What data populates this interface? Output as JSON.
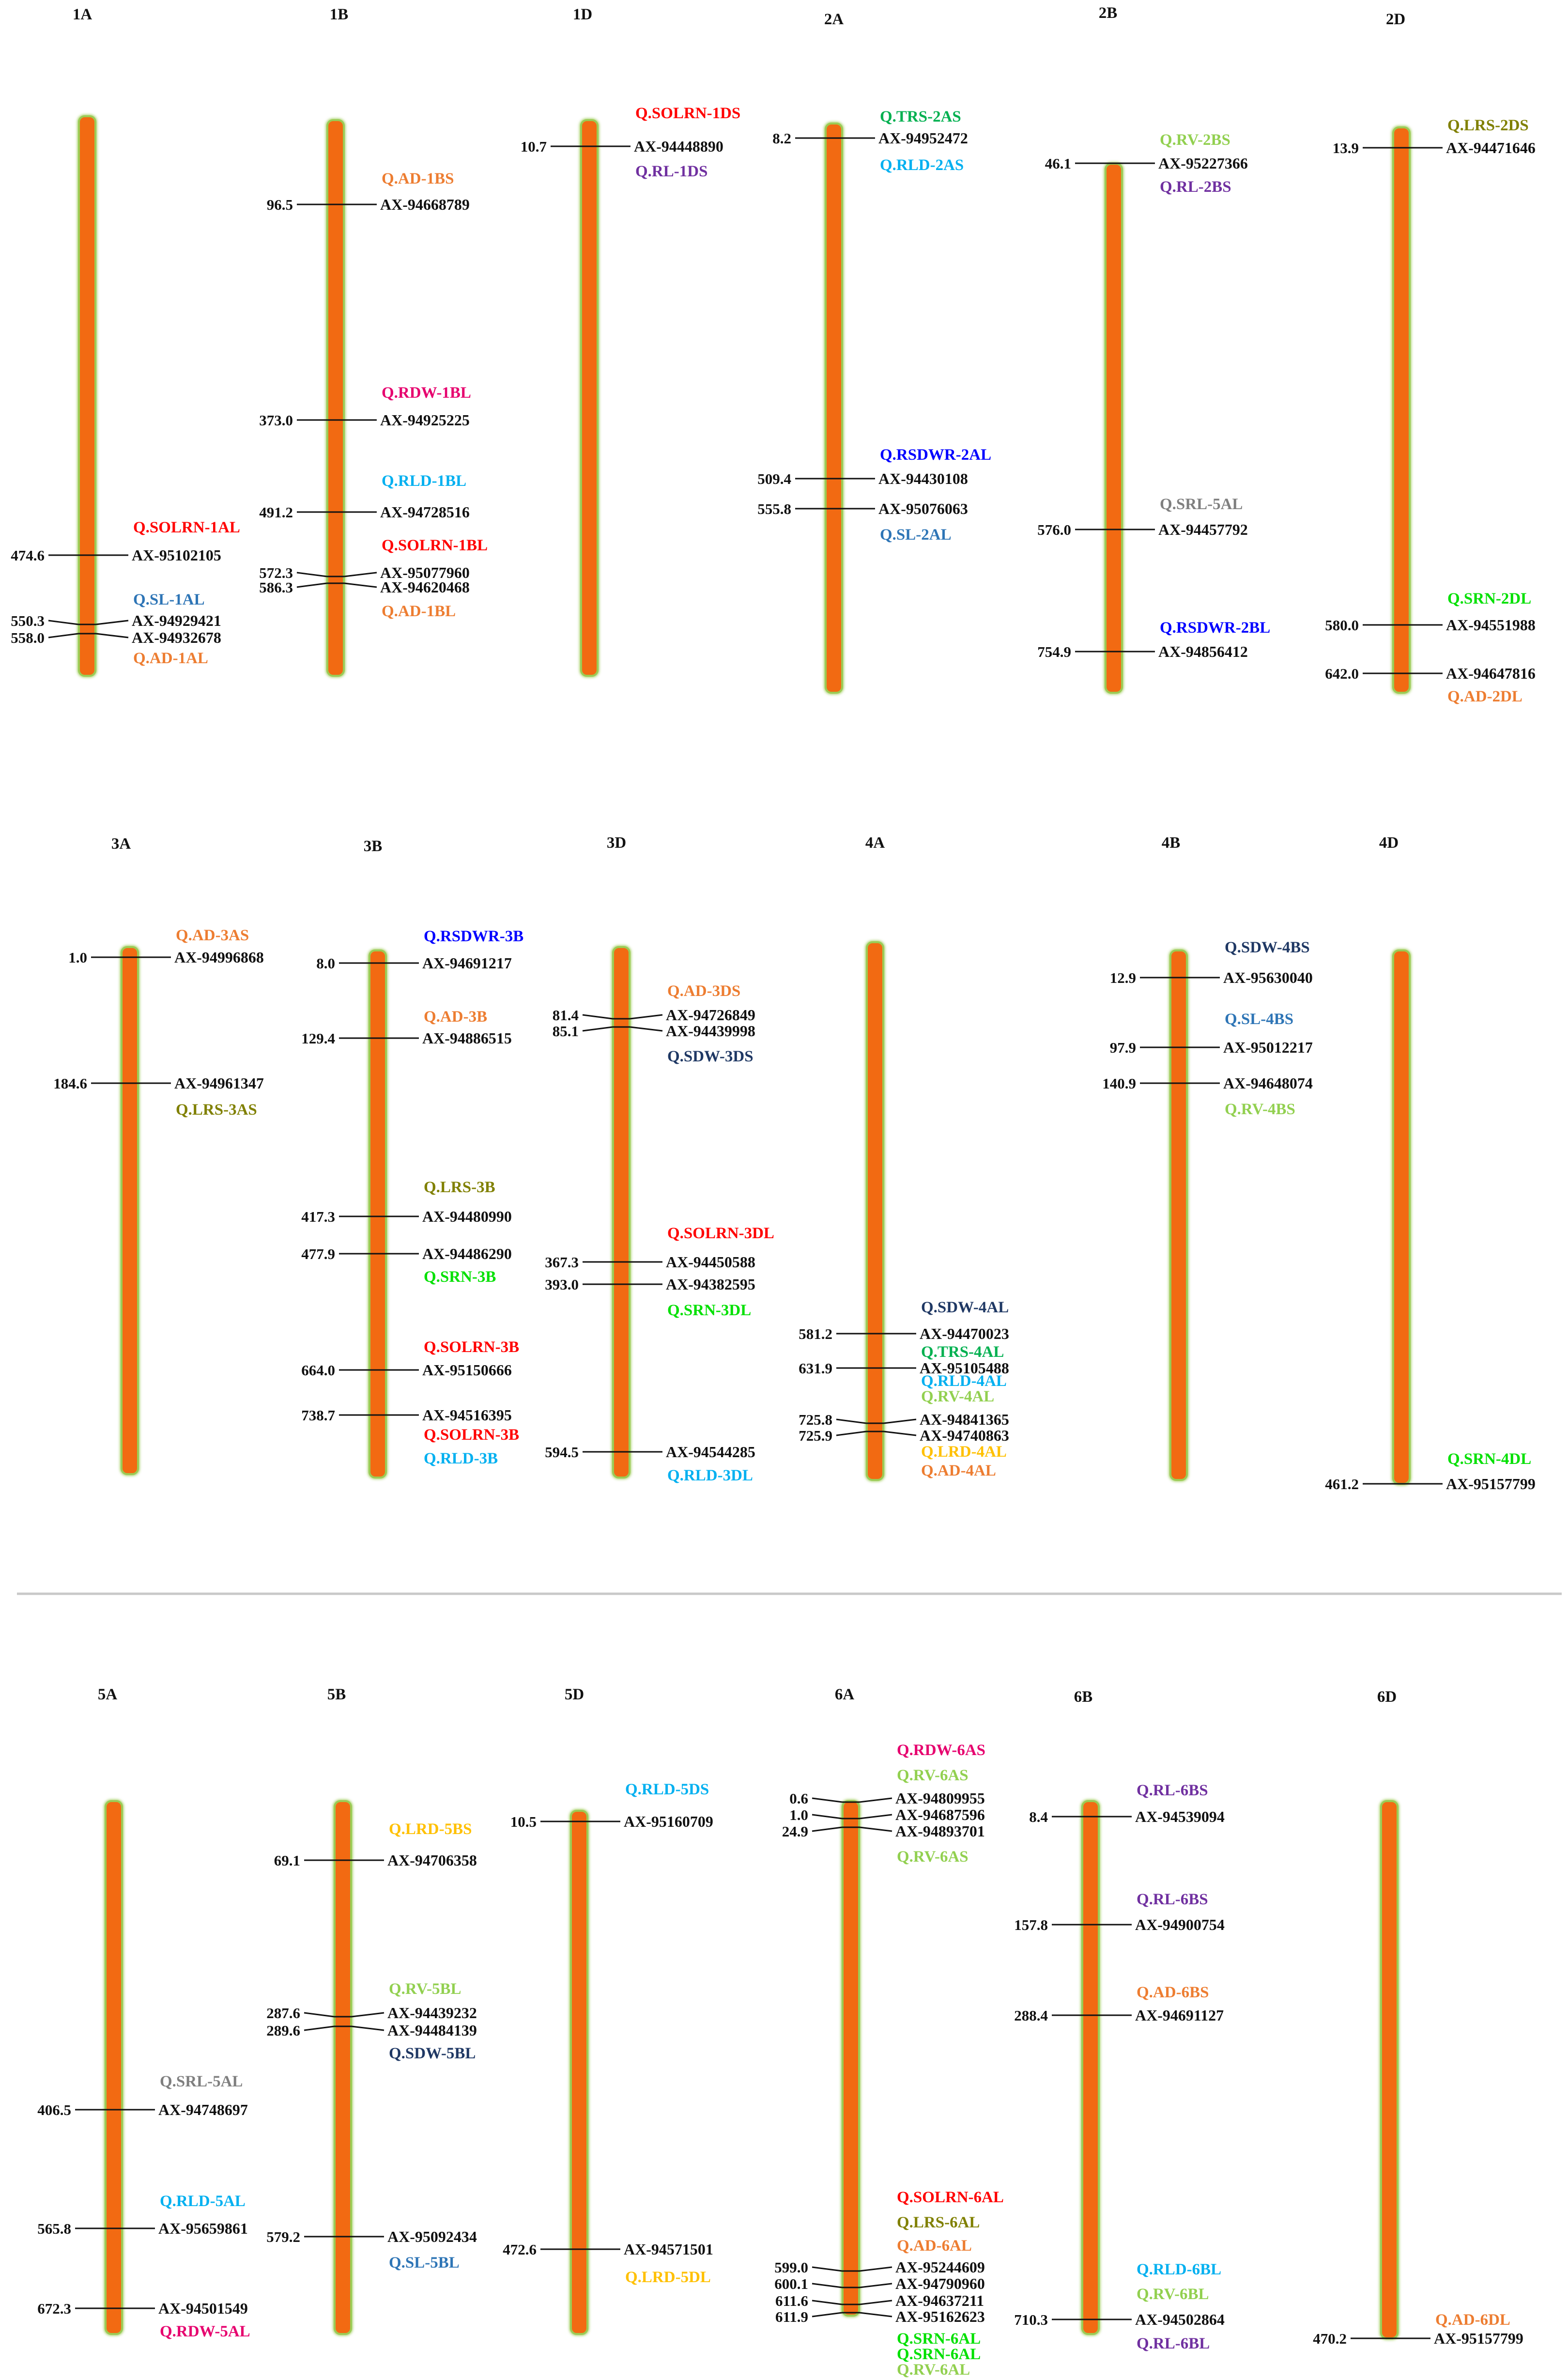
{
  "colors": {
    "chromosome_fill": "#F26A12",
    "chromosome_edge": "#9BCB55",
    "divider": "#C8C8C8",
    "line": "#111111"
  },
  "chromosomes": [
    {
      "id": "c1A",
      "name": "1A",
      "markers": [
        {
          "pos": "474.6",
          "name": "AX-95102105"
        },
        {
          "pos": "550.3",
          "name": "AX-94929421"
        },
        {
          "pos": "558.0",
          "name": "AX-94932678"
        }
      ],
      "qtls": [
        {
          "name": "Q.SOLRN-1AL",
          "color": "#FF0000"
        },
        {
          "name": "Q.SL-1AL",
          "color": "#2E75B6"
        },
        {
          "name": "Q.AD-1AL",
          "color": "#ED7D31"
        }
      ]
    },
    {
      "id": "c1B",
      "name": "1B",
      "markers": [
        {
          "pos": "96.5",
          "name": "AX-94668789"
        },
        {
          "pos": "373.0",
          "name": "AX-94925225"
        },
        {
          "pos": "491.2",
          "name": "AX-94728516"
        },
        {
          "pos": "572.3",
          "name": "AX-95077960"
        },
        {
          "pos": "586.3",
          "name": "AX-94620468"
        }
      ],
      "qtls": [
        {
          "name": "Q.AD-1BS",
          "color": "#ED7D31"
        },
        {
          "name": "Q.RDW-1BL",
          "color": "#E6006E"
        },
        {
          "name": "Q.RLD-1BL",
          "color": "#00B0F0"
        },
        {
          "name": "Q.SOLRN-1BL",
          "color": "#FF0000"
        },
        {
          "name": "Q.AD-1BL",
          "color": "#ED7D31"
        }
      ]
    },
    {
      "id": "c1D",
      "name": "1D",
      "markers": [
        {
          "pos": "10.7",
          "name": "AX-94448890"
        }
      ],
      "qtls": [
        {
          "name": "Q.SOLRN-1DS",
          "color": "#FF0000"
        },
        {
          "name": "Q.RL-1DS",
          "color": "#7030A0"
        }
      ]
    },
    {
      "id": "c2A",
      "name": "2A",
      "markers": [
        {
          "pos": "8.2",
          "name": "AX-94952472"
        },
        {
          "pos": "509.4",
          "name": "AX-94430108"
        },
        {
          "pos": "555.8",
          "name": "AX-95076063"
        }
      ],
      "qtls": [
        {
          "name": "Q.TRS-2AS",
          "color": "#00B050"
        },
        {
          "name": "Q.RLD-2AS",
          "color": "#00B0F0"
        },
        {
          "name": "Q.RSDWR-2AL",
          "color": "#0000FF"
        },
        {
          "name": "Q.SL-2AL",
          "color": "#2E75B6"
        }
      ]
    },
    {
      "id": "c2B",
      "name": "2B",
      "markers": [
        {
          "pos": "46.1",
          "name": "AX-95227366"
        },
        {
          "pos": "576.0",
          "name": "AX-94457792"
        },
        {
          "pos": "754.9",
          "name": "AX-94856412"
        }
      ],
      "qtls": [
        {
          "name": "Q.RV-2BS",
          "color": "#92D050"
        },
        {
          "name": "Q.RL-2BS",
          "color": "#7030A0"
        },
        {
          "name": "Q.SRL-5AL",
          "color": "#7F7F7F"
        },
        {
          "name": "Q.RSDWR-2BL",
          "color": "#0000FF"
        }
      ]
    },
    {
      "id": "c2D",
      "name": "2D",
      "markers": [
        {
          "pos": "13.9",
          "name": "AX-94471646"
        },
        {
          "pos": "580.0",
          "name": "AX-94551988"
        },
        {
          "pos": "642.0",
          "name": "AX-94647816"
        }
      ],
      "qtls": [
        {
          "name": "Q.LRS-2DS",
          "color": "#808000"
        },
        {
          "name": "Q.SRN-2DL",
          "color": "#00E000"
        },
        {
          "name": "Q.AD-2DL",
          "color": "#ED7D31"
        }
      ]
    },
    {
      "id": "c3A",
      "name": "3A",
      "markers": [
        {
          "pos": "1.0",
          "name": "AX-94996868"
        },
        {
          "pos": "184.6",
          "name": "AX-94961347"
        }
      ],
      "qtls": [
        {
          "name": "Q.AD-3AS",
          "color": "#ED7D31"
        },
        {
          "name": "Q.LRS-3AS",
          "color": "#808000"
        }
      ]
    },
    {
      "id": "c3B",
      "name": "3B",
      "markers": [
        {
          "pos": "8.0",
          "name": "AX-94691217"
        },
        {
          "pos": "129.4",
          "name": "AX-94886515"
        },
        {
          "pos": "417.3",
          "name": "AX-94480990"
        },
        {
          "pos": "477.9",
          "name": "AX-94486290"
        },
        {
          "pos": "664.0",
          "name": "AX-95150666"
        },
        {
          "pos": "738.7",
          "name": "AX-94516395"
        }
      ],
      "qtls": [
        {
          "name": "Q.RSDWR-3B",
          "color": "#0000FF"
        },
        {
          "name": "Q.AD-3B",
          "color": "#ED7D31"
        },
        {
          "name": "Q.LRS-3B",
          "color": "#808000"
        },
        {
          "name": "Q.SRN-3B",
          "color": "#00E000"
        },
        {
          "name": "Q.SOLRN-3B",
          "color": "#FF0000"
        },
        {
          "name": "Q.SOLRN-3B",
          "color": "#FF0000"
        },
        {
          "name": "Q.RLD-3B",
          "color": "#00B0F0"
        }
      ]
    },
    {
      "id": "c3D",
      "name": "3D",
      "markers": [
        {
          "pos": "81.4",
          "name": "AX-94726849"
        },
        {
          "pos": "85.1",
          "name": "AX-94439998"
        },
        {
          "pos": "367.3",
          "name": "AX-94450588"
        },
        {
          "pos": "393.0",
          "name": "AX-94382595"
        },
        {
          "pos": "594.5",
          "name": "AX-94544285"
        }
      ],
      "qtls": [
        {
          "name": "Q.AD-3DS",
          "color": "#ED7D31"
        },
        {
          "name": "Q.SDW-3DS",
          "color": "#1F3864"
        },
        {
          "name": "Q.SOLRN-3DL",
          "color": "#FF0000"
        },
        {
          "name": "Q.SRN-3DL",
          "color": "#00E000"
        },
        {
          "name": "Q.RLD-3DL",
          "color": "#00B0F0"
        }
      ]
    },
    {
      "id": "c4A",
      "name": "4A",
      "markers": [
        {
          "pos": "581.2",
          "name": "AX-94470023"
        },
        {
          "pos": "631.9",
          "name": "AX-95105488"
        },
        {
          "pos": "725.8",
          "name": "AX-94841365"
        },
        {
          "pos": "725.9",
          "name": "AX-94740863"
        }
      ],
      "qtls": [
        {
          "name": "Q.SDW-4AL",
          "color": "#1F3864"
        },
        {
          "name": "Q.TRS-4AL",
          "color": "#00B050"
        },
        {
          "name": "Q.RLD-4AL",
          "color": "#00B0F0"
        },
        {
          "name": "Q.RV-4AL",
          "color": "#92D050"
        },
        {
          "name": "Q.LRD-4AL",
          "color": "#FFC000"
        },
        {
          "name": "Q.AD-4AL",
          "color": "#ED7D31"
        }
      ]
    },
    {
      "id": "c4B",
      "name": "4B",
      "markers": [
        {
          "pos": "12.9",
          "name": "AX-95630040"
        },
        {
          "pos": "97.9",
          "name": "AX-95012217"
        },
        {
          "pos": "140.9",
          "name": "AX-94648074"
        }
      ],
      "qtls": [
        {
          "name": "Q.SDW-4BS",
          "color": "#1F3864"
        },
        {
          "name": "Q.SL-4BS",
          "color": "#2E75B6"
        },
        {
          "name": "Q.RV-4BS",
          "color": "#92D050"
        }
      ]
    },
    {
      "id": "c4D",
      "name": "4D",
      "markers": [
        {
          "pos": "461.2",
          "name": "AX-95157799"
        }
      ],
      "qtls": [
        {
          "name": "Q.SRN-4DL",
          "color": "#00E000"
        }
      ]
    },
    {
      "id": "c5A",
      "name": "5A",
      "markers": [
        {
          "pos": "406.5",
          "name": "AX-94748697"
        },
        {
          "pos": "565.8",
          "name": "AX-95659861"
        },
        {
          "pos": "672.3",
          "name": "AX-94501549"
        }
      ],
      "qtls": [
        {
          "name": "Q.SRL-5AL",
          "color": "#7F7F7F"
        },
        {
          "name": "Q.RLD-5AL",
          "color": "#00B0F0"
        },
        {
          "name": "Q.RDW-5AL",
          "color": "#E6006E"
        }
      ]
    },
    {
      "id": "c5B",
      "name": "5B",
      "markers": [
        {
          "pos": "69.1",
          "name": "AX-94706358"
        },
        {
          "pos": "287.6",
          "name": "AX-94439232"
        },
        {
          "pos": "289.6",
          "name": "AX-94484139"
        },
        {
          "pos": "579.2",
          "name": "AX-95092434"
        }
      ],
      "qtls": [
        {
          "name": "Q.LRD-5BS",
          "color": "#FFC000"
        },
        {
          "name": "Q.RV-5BL",
          "color": "#92D050"
        },
        {
          "name": "Q.SDW-5BL",
          "color": "#1F3864"
        },
        {
          "name": "Q.SL-5BL",
          "color": "#2E75B6"
        }
      ]
    },
    {
      "id": "c5D",
      "name": "5D",
      "markers": [
        {
          "pos": "10.5",
          "name": "AX-95160709"
        },
        {
          "pos": "472.6",
          "name": "AX-94571501"
        }
      ],
      "qtls": [
        {
          "name": "Q.RLD-5DS",
          "color": "#00B0F0"
        },
        {
          "name": "Q.LRD-5DL",
          "color": "#FFC000"
        }
      ]
    },
    {
      "id": "c6A",
      "name": "6A",
      "markers": [
        {
          "pos": "0.6",
          "name": "AX-94809955"
        },
        {
          "pos": "1.0",
          "name": "AX-94687596"
        },
        {
          "pos": "24.9",
          "name": "AX-94893701"
        },
        {
          "pos": "599.0",
          "name": "AX-95244609"
        },
        {
          "pos": "600.1",
          "name": "AX-94790960"
        },
        {
          "pos": "611.6",
          "name": "AX-94637211"
        },
        {
          "pos": "611.9",
          "name": "AX-95162623"
        }
      ],
      "qtls": [
        {
          "name": "Q.RDW-6AS",
          "color": "#E6006E"
        },
        {
          "name": "Q.RV-6AS",
          "color": "#92D050"
        },
        {
          "name": "Q.RV-6AS",
          "color": "#92D050"
        },
        {
          "name": "Q.SOLRN-6AL",
          "color": "#FF0000"
        },
        {
          "name": "Q.LRS-6AL",
          "color": "#808000"
        },
        {
          "name": "Q.AD-6AL",
          "color": "#ED7D31"
        },
        {
          "name": "Q.SRN-6AL",
          "color": "#00E000"
        },
        {
          "name": "Q.SRN-6AL",
          "color": "#00E000"
        },
        {
          "name": "Q.RV-6AL",
          "color": "#92D050"
        }
      ]
    },
    {
      "id": "c6B",
      "name": "6B",
      "markers": [
        {
          "pos": "8.4",
          "name": "AX-94539094"
        },
        {
          "pos": "157.8",
          "name": "AX-94900754"
        },
        {
          "pos": "288.4",
          "name": "AX-94691127"
        },
        {
          "pos": "710.3",
          "name": "AX-94502864"
        }
      ],
      "qtls": [
        {
          "name": "Q.RL-6BS",
          "color": "#7030A0"
        },
        {
          "name": "Q.RL-6BS",
          "color": "#7030A0"
        },
        {
          "name": "Q.AD-6BS",
          "color": "#ED7D31"
        },
        {
          "name": "Q.RLD-6BL",
          "color": "#00B0F0"
        },
        {
          "name": "Q.RV-6BL",
          "color": "#92D050"
        },
        {
          "name": "Q.RL-6BL",
          "color": "#7030A0"
        }
      ]
    },
    {
      "id": "c6D",
      "name": "6D",
      "markers": [
        {
          "pos": "470.2",
          "name": "AX-95157799"
        }
      ],
      "qtls": [
        {
          "name": "Q.AD-6DL",
          "color": "#ED7D31"
        }
      ]
    }
  ]
}
